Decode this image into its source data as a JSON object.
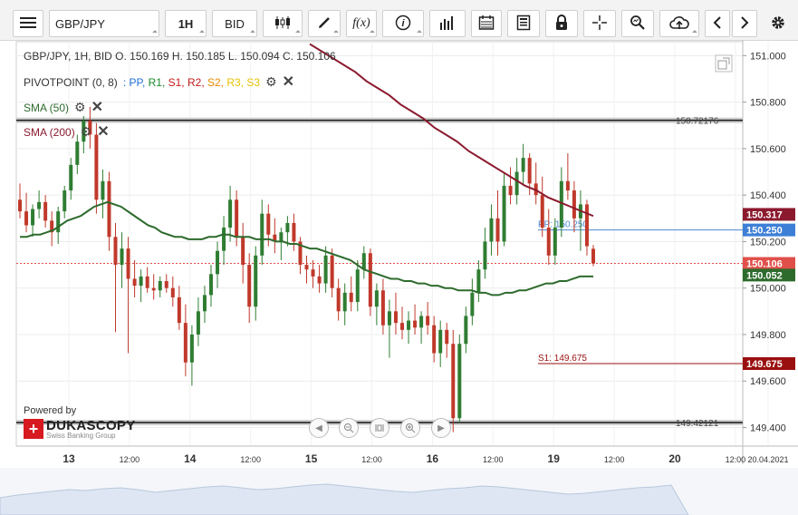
{
  "toolbar": {
    "symbol": "GBP/JPY",
    "timeframe": "1H",
    "price_side": "BID",
    "icons": [
      "menu-icon",
      "candle-type-icon",
      "draw-icon",
      "fx-indicator-icon",
      "info-icon",
      "volume-icon",
      "calendar-icon",
      "report-icon",
      "lock-icon",
      "crosshair-icon",
      "zoom-icon",
      "cloud-upload-icon",
      "prev-arrow-icon",
      "next-arrow-icon",
      "settings-icon"
    ]
  },
  "legend": {
    "ohlc": "GBP/JPY, 1H, BID    O. 150.169 H. 150.185 L. 150.094 C. 150.106",
    "pivot_name": "PIVOTPOINT (0, 8)",
    "pivot_items": [
      {
        "label": ": PP,",
        "color": "#1f6fd6"
      },
      {
        "label": " R1,",
        "color": "#1a8a2c"
      },
      {
        "label": " S1,",
        "color": "#c41a1a"
      },
      {
        "label": " R2,",
        "color": "#c41a1a"
      },
      {
        "label": " S2,",
        "color": "#e68a00"
      },
      {
        "label": " R3,",
        "color": "#e6c200"
      },
      {
        "label": " S3",
        "color": "#e6c200"
      }
    ],
    "sma50": "SMA (50)",
    "sma200": "SMA (200)"
  },
  "branding": {
    "powered_by": "Powered by",
    "brand": "DUKASCOPY",
    "tagline": "Swiss Banking Group"
  },
  "chart_data": {
    "type": "candlestick",
    "title": "GBP/JPY, 1H, BID",
    "ylim": [
      149.32,
      151.06
    ],
    "y_ticks": [
      "151.000",
      "150.800",
      "150.600",
      "150.400",
      "150.200",
      "150.000",
      "149.800",
      "149.600",
      "149.400"
    ],
    "x_tick_labels": [
      {
        "label": "13",
        "bold": true
      },
      {
        "label": "12:00",
        "bold": false
      },
      {
        "label": "14",
        "bold": true
      },
      {
        "label": "12:00",
        "bold": false
      },
      {
        "label": "15",
        "bold": true
      },
      {
        "label": "12:00",
        "bold": false
      },
      {
        "label": "16",
        "bold": true
      },
      {
        "label": "12:00",
        "bold": false
      },
      {
        "label": "19",
        "bold": true
      },
      {
        "label": "12:00",
        "bold": false
      },
      {
        "label": "20",
        "bold": true
      },
      {
        "label": "12:00",
        "bold": false
      },
      {
        "label": "20.04.2021",
        "bold": false
      }
    ],
    "horizontal_levels": [
      {
        "label": "150.72176",
        "value": 150.72176
      },
      {
        "label": "149.42121",
        "value": 149.42121
      }
    ],
    "pivot_levels": [
      {
        "label": "PP: 150.250",
        "value": 150.25,
        "color": "#4a88d6"
      },
      {
        "label": "S1: 149.675",
        "value": 149.675,
        "color": "#9a1010"
      }
    ],
    "last_close": 150.106,
    "price_tags": [
      {
        "label": "150.317",
        "value": 150.317,
        "color": "#8b1a2e"
      },
      {
        "label": "150.250",
        "value": 150.25,
        "color": "#3d7fd6"
      },
      {
        "label": "150.106",
        "value": 150.106,
        "color": "#e0504a"
      },
      {
        "label": "150.052",
        "value": 150.052,
        "color": "#2d6b2d"
      },
      {
        "label": "149.675",
        "value": 149.675,
        "color": "#9a1010"
      }
    ],
    "candles": [
      {
        "o": 150.38,
        "h": 150.45,
        "l": 150.3,
        "c": 150.33
      },
      {
        "o": 150.33,
        "h": 150.41,
        "l": 150.24,
        "c": 150.27
      },
      {
        "o": 150.27,
        "h": 150.36,
        "l": 150.22,
        "c": 150.34
      },
      {
        "o": 150.34,
        "h": 150.42,
        "l": 150.3,
        "c": 150.37
      },
      {
        "o": 150.37,
        "h": 150.4,
        "l": 150.26,
        "c": 150.29
      },
      {
        "o": 150.29,
        "h": 150.33,
        "l": 150.18,
        "c": 150.24
      },
      {
        "o": 150.24,
        "h": 150.35,
        "l": 150.19,
        "c": 150.33
      },
      {
        "o": 150.33,
        "h": 150.44,
        "l": 150.3,
        "c": 150.42
      },
      {
        "o": 150.42,
        "h": 150.56,
        "l": 150.38,
        "c": 150.53
      },
      {
        "o": 150.53,
        "h": 150.66,
        "l": 150.49,
        "c": 150.63
      },
      {
        "o": 150.63,
        "h": 150.74,
        "l": 150.58,
        "c": 150.72
      },
      {
        "o": 150.72,
        "h": 150.78,
        "l": 150.6,
        "c": 150.66
      },
      {
        "o": 150.66,
        "h": 150.71,
        "l": 150.32,
        "c": 150.38
      },
      {
        "o": 150.38,
        "h": 150.51,
        "l": 150.3,
        "c": 150.46
      },
      {
        "o": 150.46,
        "h": 150.5,
        "l": 150.16,
        "c": 150.22
      },
      {
        "o": 150.22,
        "h": 150.28,
        "l": 149.81,
        "c": 150.1
      },
      {
        "o": 150.1,
        "h": 150.24,
        "l": 150.0,
        "c": 150.17
      },
      {
        "o": 150.17,
        "h": 150.22,
        "l": 149.72,
        "c": 150.04
      },
      {
        "o": 150.04,
        "h": 150.12,
        "l": 149.96,
        "c": 150.01
      },
      {
        "o": 150.01,
        "h": 150.08,
        "l": 149.94,
        "c": 150.05
      },
      {
        "o": 150.05,
        "h": 150.09,
        "l": 149.98,
        "c": 150.0
      },
      {
        "o": 150.0,
        "h": 150.06,
        "l": 149.95,
        "c": 149.99
      },
      {
        "o": 149.99,
        "h": 150.05,
        "l": 149.96,
        "c": 150.03
      },
      {
        "o": 150.03,
        "h": 150.06,
        "l": 149.98,
        "c": 150.0
      },
      {
        "o": 150.0,
        "h": 150.05,
        "l": 149.92,
        "c": 149.96
      },
      {
        "o": 149.96,
        "h": 150.01,
        "l": 149.82,
        "c": 149.85
      },
      {
        "o": 149.85,
        "h": 149.93,
        "l": 149.62,
        "c": 149.68
      },
      {
        "o": 149.68,
        "h": 149.84,
        "l": 149.58,
        "c": 149.8
      },
      {
        "o": 149.8,
        "h": 149.96,
        "l": 149.75,
        "c": 149.9
      },
      {
        "o": 149.9,
        "h": 150.01,
        "l": 149.85,
        "c": 149.97
      },
      {
        "o": 149.97,
        "h": 150.1,
        "l": 149.92,
        "c": 150.06
      },
      {
        "o": 150.06,
        "h": 150.2,
        "l": 150.0,
        "c": 150.16
      },
      {
        "o": 150.16,
        "h": 150.31,
        "l": 150.1,
        "c": 150.26
      },
      {
        "o": 150.26,
        "h": 150.44,
        "l": 150.2,
        "c": 150.38
      },
      {
        "o": 150.38,
        "h": 150.42,
        "l": 150.18,
        "c": 150.22
      },
      {
        "o": 150.22,
        "h": 150.28,
        "l": 150.02,
        "c": 150.1
      },
      {
        "o": 150.1,
        "h": 150.15,
        "l": 149.85,
        "c": 149.92
      },
      {
        "o": 149.92,
        "h": 150.18,
        "l": 149.86,
        "c": 150.14
      },
      {
        "o": 150.14,
        "h": 150.38,
        "l": 150.1,
        "c": 150.32
      },
      {
        "o": 150.32,
        "h": 150.36,
        "l": 150.18,
        "c": 150.23
      },
      {
        "o": 150.23,
        "h": 150.3,
        "l": 150.15,
        "c": 150.2
      },
      {
        "o": 150.2,
        "h": 150.26,
        "l": 150.12,
        "c": 150.24
      },
      {
        "o": 150.24,
        "h": 150.31,
        "l": 150.18,
        "c": 150.28
      },
      {
        "o": 150.28,
        "h": 150.32,
        "l": 150.16,
        "c": 150.2
      },
      {
        "o": 150.2,
        "h": 150.22,
        "l": 150.06,
        "c": 150.1
      },
      {
        "o": 150.1,
        "h": 150.14,
        "l": 150.02,
        "c": 150.08
      },
      {
        "o": 150.08,
        "h": 150.12,
        "l": 150.0,
        "c": 150.05
      },
      {
        "o": 150.05,
        "h": 150.1,
        "l": 149.98,
        "c": 150.02
      },
      {
        "o": 150.02,
        "h": 150.18,
        "l": 149.98,
        "c": 150.14
      },
      {
        "o": 150.14,
        "h": 150.17,
        "l": 149.96,
        "c": 150.0
      },
      {
        "o": 150.0,
        "h": 150.04,
        "l": 149.86,
        "c": 149.9
      },
      {
        "o": 149.9,
        "h": 150.02,
        "l": 149.84,
        "c": 149.98
      },
      {
        "o": 149.98,
        "h": 150.05,
        "l": 149.9,
        "c": 149.94
      },
      {
        "o": 149.94,
        "h": 150.12,
        "l": 149.9,
        "c": 150.08
      },
      {
        "o": 150.08,
        "h": 150.18,
        "l": 150.04,
        "c": 150.15
      },
      {
        "o": 150.15,
        "h": 150.17,
        "l": 149.88,
        "c": 149.92
      },
      {
        "o": 149.92,
        "h": 150.02,
        "l": 149.84,
        "c": 149.99
      },
      {
        "o": 149.99,
        "h": 150.04,
        "l": 149.8,
        "c": 149.84
      },
      {
        "o": 149.84,
        "h": 149.95,
        "l": 149.7,
        "c": 149.9
      },
      {
        "o": 149.9,
        "h": 149.98,
        "l": 149.8,
        "c": 149.85
      },
      {
        "o": 149.85,
        "h": 149.92,
        "l": 149.78,
        "c": 149.82
      },
      {
        "o": 149.82,
        "h": 149.9,
        "l": 149.76,
        "c": 149.86
      },
      {
        "o": 149.86,
        "h": 149.93,
        "l": 149.8,
        "c": 149.83
      },
      {
        "o": 149.83,
        "h": 149.9,
        "l": 149.76,
        "c": 149.88
      },
      {
        "o": 149.88,
        "h": 149.94,
        "l": 149.8,
        "c": 149.84
      },
      {
        "o": 149.84,
        "h": 149.88,
        "l": 149.68,
        "c": 149.72
      },
      {
        "o": 149.72,
        "h": 149.86,
        "l": 149.66,
        "c": 149.82
      },
      {
        "o": 149.82,
        "h": 149.85,
        "l": 149.7,
        "c": 149.76
      },
      {
        "o": 149.76,
        "h": 149.82,
        "l": 149.38,
        "c": 149.44
      },
      {
        "o": 149.44,
        "h": 149.8,
        "l": 149.42,
        "c": 149.76
      },
      {
        "o": 149.76,
        "h": 149.92,
        "l": 149.72,
        "c": 149.88
      },
      {
        "o": 149.88,
        "h": 150.04,
        "l": 149.84,
        "c": 149.98
      },
      {
        "o": 149.98,
        "h": 150.12,
        "l": 149.94,
        "c": 150.08
      },
      {
        "o": 150.08,
        "h": 150.26,
        "l": 150.04,
        "c": 150.2
      },
      {
        "o": 150.2,
        "h": 150.36,
        "l": 150.14,
        "c": 150.3
      },
      {
        "o": 150.3,
        "h": 150.42,
        "l": 150.14,
        "c": 150.2
      },
      {
        "o": 150.2,
        "h": 150.5,
        "l": 150.18,
        "c": 150.44
      },
      {
        "o": 150.44,
        "h": 150.52,
        "l": 150.36,
        "c": 150.4
      },
      {
        "o": 150.4,
        "h": 150.56,
        "l": 150.36,
        "c": 150.5
      },
      {
        "o": 150.5,
        "h": 150.62,
        "l": 150.44,
        "c": 150.56
      },
      {
        "o": 150.56,
        "h": 150.58,
        "l": 150.4,
        "c": 150.45
      },
      {
        "o": 150.45,
        "h": 150.54,
        "l": 150.36,
        "c": 150.4
      },
      {
        "o": 150.4,
        "h": 150.48,
        "l": 150.22,
        "c": 150.26
      },
      {
        "o": 150.26,
        "h": 150.34,
        "l": 150.1,
        "c": 150.14
      },
      {
        "o": 150.14,
        "h": 150.3,
        "l": 150.1,
        "c": 150.26
      },
      {
        "o": 150.26,
        "h": 150.52,
        "l": 150.22,
        "c": 150.46
      },
      {
        "o": 150.46,
        "h": 150.58,
        "l": 150.38,
        "c": 150.42
      },
      {
        "o": 150.42,
        "h": 150.46,
        "l": 150.24,
        "c": 150.3
      },
      {
        "o": 150.3,
        "h": 150.42,
        "l": 150.16,
        "c": 150.36
      },
      {
        "o": 150.36,
        "h": 150.38,
        "l": 150.14,
        "c": 150.18
      },
      {
        "o": 150.169,
        "h": 150.185,
        "l": 150.094,
        "c": 150.106
      }
    ],
    "sma50": [
      150.22,
      150.22,
      150.23,
      150.23,
      150.24,
      150.25,
      150.27,
      150.29,
      150.3,
      150.31,
      150.33,
      150.35,
      150.36,
      150.37,
      150.36,
      150.35,
      150.33,
      150.31,
      150.29,
      150.27,
      150.26,
      150.24,
      150.23,
      150.22,
      150.22,
      150.21,
      150.21,
      150.21,
      150.22,
      150.22,
      150.23,
      150.23,
      150.22,
      150.22,
      150.22,
      150.21,
      150.21,
      150.21,
      150.2,
      150.2,
      150.19,
      150.19,
      150.18,
      150.17,
      150.17,
      150.16,
      150.15,
      150.14,
      150.13,
      150.12,
      150.1,
      150.08,
      150.07,
      150.06,
      150.05,
      150.04,
      150.04,
      150.03,
      150.03,
      150.02,
      150.02,
      150.01,
      150.01,
      150.0,
      150.0,
      149.99,
      149.99,
      149.99,
      149.98,
      149.98,
      149.97,
      149.97,
      149.98,
      149.98,
      149.99,
      149.99,
      150.0,
      150.01,
      150.02,
      150.02,
      150.03,
      150.03,
      150.04,
      150.05,
      150.05,
      150.05
    ],
    "sma200": [
      151.05,
      151.02,
      150.99,
      150.96,
      150.93,
      150.89,
      150.86,
      150.83,
      150.79,
      150.76,
      150.73,
      150.69,
      150.66,
      150.63,
      150.59,
      150.56,
      150.53,
      150.5,
      150.47,
      150.44,
      150.42,
      150.39,
      150.37,
      150.35,
      150.33,
      150.31
    ]
  }
}
